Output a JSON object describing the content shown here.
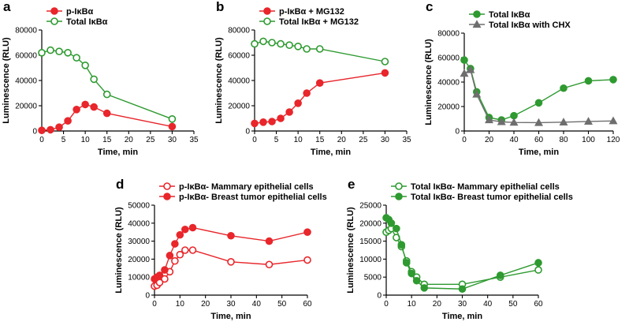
{
  "colors": {
    "red": "#e8262b",
    "green": "#2e9a30",
    "gray": "#6e6e6e",
    "axis": "#000000"
  },
  "chart_data": [
    {
      "type": "line",
      "letter": "a",
      "xlabel": "Time, min",
      "ylabel": "Luminescence (RLU)",
      "xlim": [
        0,
        35
      ],
      "ylim": [
        0,
        80000
      ],
      "xticks": [
        0,
        5,
        10,
        15,
        20,
        25,
        30,
        35
      ],
      "xtick_labels": [
        "0",
        "5",
        "10",
        "15",
        "20",
        "25",
        "30",
        "35"
      ],
      "yticks": [
        0,
        20000,
        40000,
        60000,
        80000
      ],
      "ytick_labels": [
        "0",
        "20000",
        "40000",
        "60000",
        "80000"
      ],
      "legend_position": "top-left",
      "series": [
        {
          "name": "p-IκBα",
          "color": "red",
          "marker": "circle",
          "fill": "filled",
          "x": [
            0,
            2,
            4,
            6,
            8,
            10,
            12,
            15,
            30
          ],
          "y": [
            500,
            1000,
            3000,
            8000,
            17000,
            21000,
            19000,
            14000,
            3500
          ]
        },
        {
          "name": "Total IκBα",
          "color": "green",
          "marker": "circle",
          "fill": "open",
          "x": [
            0,
            2,
            4,
            6,
            8,
            10,
            12,
            15,
            30
          ],
          "y": [
            62000,
            64000,
            63000,
            62000,
            58000,
            52000,
            41000,
            29000,
            9500
          ]
        }
      ]
    },
    {
      "type": "line",
      "letter": "b",
      "xlabel": "Time, min",
      "ylabel": "Luminescence (RLU)",
      "xlim": [
        0,
        35
      ],
      "ylim": [
        0,
        80000
      ],
      "xticks": [
        0,
        5,
        10,
        15,
        20,
        25,
        30,
        35
      ],
      "xtick_labels": [
        "0",
        "5",
        "10",
        "15",
        "20",
        "25",
        "30",
        "35"
      ],
      "yticks": [
        0,
        20000,
        40000,
        60000,
        80000
      ],
      "ytick_labels": [
        "0",
        "20000",
        "40000",
        "60000",
        "80000"
      ],
      "legend_position": "top-left",
      "series": [
        {
          "name": "p-IκBα + MG132",
          "color": "red",
          "marker": "circle",
          "fill": "filled",
          "x": [
            0,
            2,
            4,
            6,
            8,
            10,
            12,
            15,
            30
          ],
          "y": [
            6000,
            7000,
            7500,
            10000,
            15000,
            22000,
            30000,
            38000,
            46000
          ]
        },
        {
          "name": "Total IκBα + MG132",
          "color": "green",
          "marker": "circle",
          "fill": "open",
          "x": [
            0,
            2,
            4,
            6,
            8,
            10,
            12,
            15,
            30
          ],
          "y": [
            69000,
            71000,
            70000,
            69000,
            68000,
            67000,
            65000,
            65000,
            55000
          ]
        }
      ]
    },
    {
      "type": "line",
      "letter": "c",
      "xlabel": "Time, min",
      "ylabel": "Luminescence (RLU)",
      "xlim": [
        0,
        120
      ],
      "ylim": [
        0,
        80000
      ],
      "xticks": [
        0,
        20,
        40,
        60,
        80,
        100,
        120
      ],
      "xtick_labels": [
        "0",
        "20",
        "40",
        "60",
        "80",
        "100",
        "120"
      ],
      "yticks": [
        0,
        20000,
        40000,
        60000,
        80000
      ],
      "ytick_labels": [
        "0",
        "20000",
        "40000",
        "60000",
        "80000"
      ],
      "legend_position": "top-left",
      "series": [
        {
          "name": "Total IκBα",
          "color": "green",
          "marker": "circle",
          "fill": "filled",
          "x": [
            0,
            5,
            10,
            20,
            30,
            40,
            60,
            80,
            100,
            120
          ],
          "y": [
            58000,
            51000,
            32000,
            11000,
            9000,
            12500,
            23000,
            35000,
            41000,
            42000
          ]
        },
        {
          "name": "Total IκBα with CHX",
          "color": "gray",
          "marker": "triangle",
          "fill": "filled",
          "x": [
            0,
            5,
            10,
            20,
            30,
            40,
            60,
            80,
            100,
            120
          ],
          "y": [
            47000,
            50000,
            30000,
            9000,
            7500,
            7000,
            6800,
            7200,
            7800,
            8200
          ]
        }
      ]
    },
    {
      "type": "line",
      "letter": "d",
      "xlabel": "Time, min",
      "ylabel": "Luminescence (RLU)",
      "xlim": [
        0,
        60
      ],
      "ylim": [
        0,
        50000
      ],
      "xticks": [
        0,
        10,
        20,
        30,
        40,
        50,
        60
      ],
      "xtick_labels": [
        "0",
        "10",
        "20",
        "30",
        "40",
        "50",
        "60"
      ],
      "yticks": [
        0,
        10000,
        20000,
        30000,
        40000,
        50000
      ],
      "ytick_labels": [
        "0",
        "10000",
        "20000",
        "30000",
        "40000",
        "50000"
      ],
      "legend_position": "top-left",
      "series": [
        {
          "name": "p-IκBα- Mammary epithelial cells",
          "color": "red",
          "marker": "circle",
          "fill": "open",
          "x": [
            0,
            1,
            2,
            4,
            6,
            8,
            10,
            12,
            15,
            30,
            45,
            60
          ],
          "y": [
            5000,
            5500,
            7000,
            9000,
            13000,
            19000,
            22500,
            25000,
            25000,
            18500,
            17000,
            19500
          ]
        },
        {
          "name": "p-IκBα- Breast tumor epithelial cells",
          "color": "red",
          "marker": "circle",
          "fill": "filled",
          "x": [
            0,
            1,
            2,
            4,
            6,
            8,
            10,
            12,
            15,
            30,
            45,
            60
          ],
          "y": [
            9000,
            10000,
            11000,
            14000,
            22000,
            28500,
            33500,
            36500,
            37500,
            33000,
            30000,
            35000
          ]
        }
      ]
    },
    {
      "type": "line",
      "letter": "e",
      "xlabel": "Time, min",
      "ylabel": "Luminescence (RLU)",
      "xlim": [
        0,
        60
      ],
      "ylim": [
        0,
        25000
      ],
      "xticks": [
        0,
        10,
        20,
        30,
        40,
        50,
        60
      ],
      "xtick_labels": [
        "0",
        "10",
        "20",
        "30",
        "40",
        "50",
        "60"
      ],
      "yticks": [
        0,
        5000,
        10000,
        15000,
        20000,
        25000
      ],
      "ytick_labels": [
        "0",
        "5000",
        "10000",
        "15000",
        "20000",
        "25000"
      ],
      "legend_position": "top-left",
      "series": [
        {
          "name": "Total IκBα- Mammary epithelial cells",
          "color": "green",
          "marker": "circle",
          "fill": "open",
          "x": [
            0,
            1,
            2,
            4,
            6,
            8,
            10,
            12,
            15,
            30,
            45,
            60
          ],
          "y": [
            17500,
            18000,
            18500,
            16000,
            13500,
            9500,
            6500,
            5000,
            3000,
            3000,
            5000,
            7000
          ]
        },
        {
          "name": "Total IκBα- Breast tumor epithelial cells",
          "color": "green",
          "marker": "circle",
          "fill": "filled",
          "x": [
            0,
            1,
            2,
            4,
            6,
            8,
            10,
            12,
            15,
            30,
            45,
            60
          ],
          "y": [
            21500,
            21000,
            20000,
            18500,
            14000,
            9000,
            6000,
            4000,
            2000,
            1700,
            5500,
            9000
          ]
        }
      ]
    }
  ]
}
